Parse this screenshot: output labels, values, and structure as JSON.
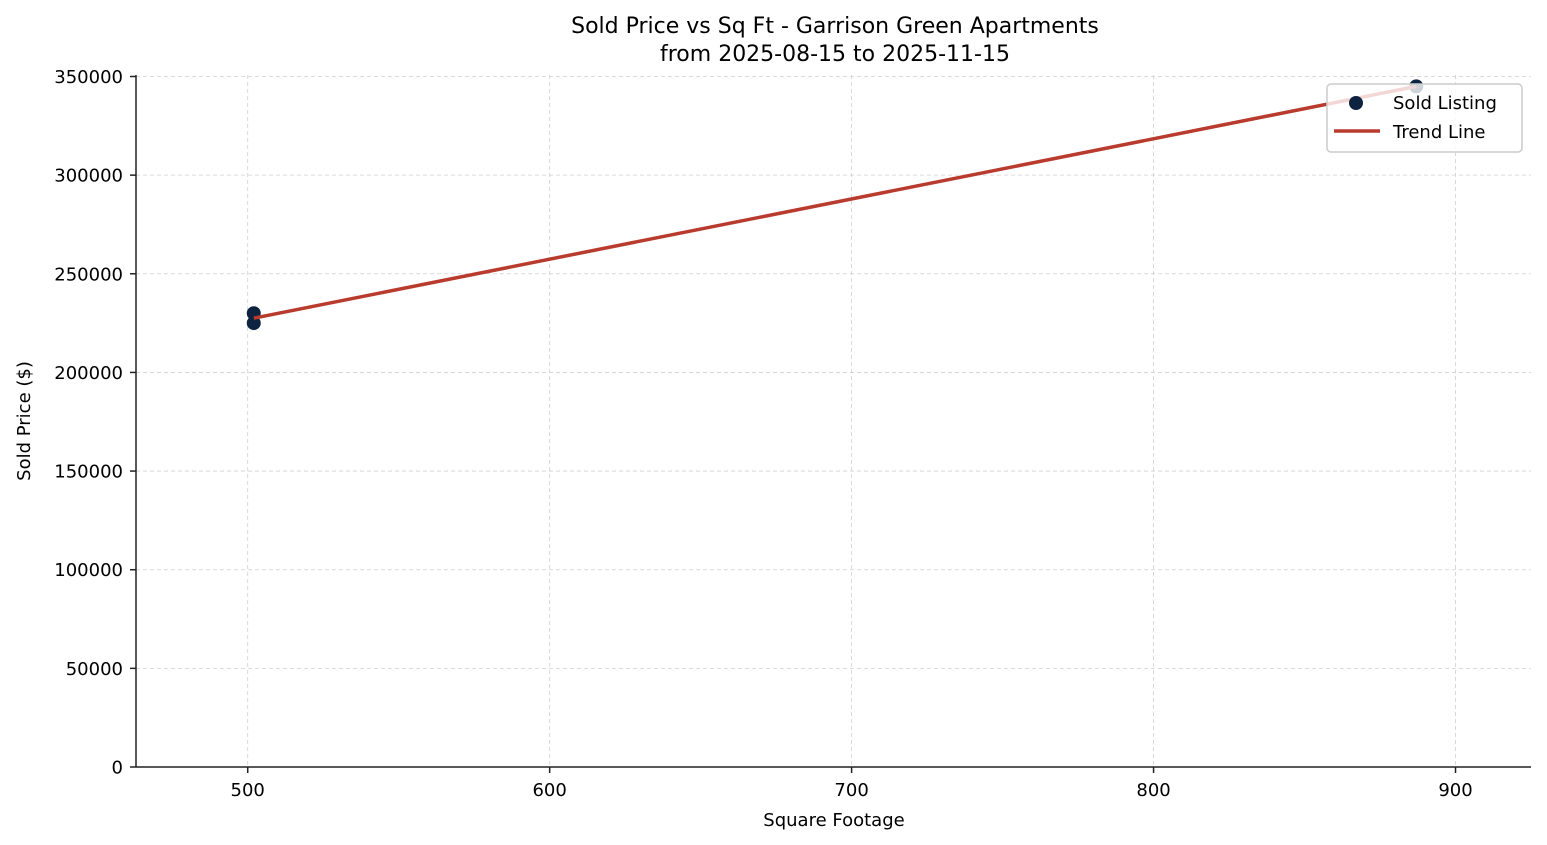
{
  "chart_data": {
    "type": "scatter",
    "title": "Sold Price vs Sq Ft - Garrison Green Apartments",
    "subtitle": "from 2025-08-15 to 2025-11-15",
    "xlabel": "Square Footage",
    "ylabel": "Sold Price ($)",
    "xlim": [
      463,
      925
    ],
    "ylim": [
      0,
      350000
    ],
    "x_ticks": [
      500,
      600,
      700,
      800,
      900
    ],
    "y_ticks": [
      0,
      50000,
      100000,
      150000,
      200000,
      250000,
      300000,
      350000
    ],
    "grid": true,
    "legend_position": "upper right",
    "series": [
      {
        "name": "Sold Listing",
        "kind": "scatter",
        "color": "#0d2340",
        "points": [
          {
            "x": 502,
            "y": 230000
          },
          {
            "x": 502,
            "y": 225000
          },
          {
            "x": 887,
            "y": 345000
          }
        ]
      },
      {
        "name": "Trend Line",
        "kind": "line",
        "color": "#b83b2e",
        "points": [
          {
            "x": 502,
            "y": 227500
          },
          {
            "x": 887,
            "y": 345000
          }
        ]
      }
    ]
  },
  "legend": {
    "items": [
      {
        "label": "Sold Listing"
      },
      {
        "label": "Trend Line"
      }
    ]
  }
}
